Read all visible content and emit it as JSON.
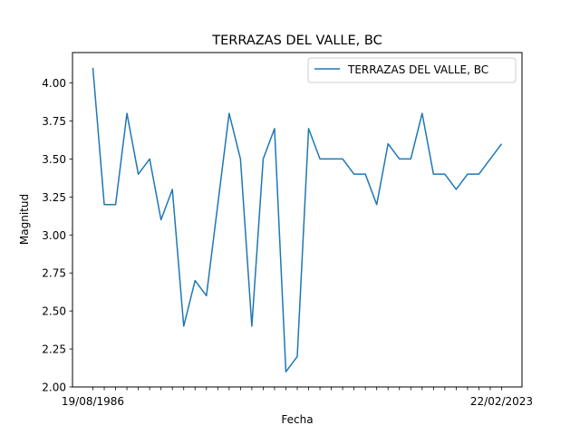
{
  "chart_data": {
    "type": "line",
    "title": "TERRAZAS DEL VALLE, BC",
    "xlabel": "Fecha",
    "ylabel": "Magnitud",
    "ylim": [
      2.0,
      4.2
    ],
    "yticks": [
      "2.00",
      "2.25",
      "2.50",
      "2.75",
      "3.00",
      "3.25",
      "3.50",
      "3.75",
      "4.00"
    ],
    "x_first_label": "19/08/1986",
    "x_last_label": "22/02/2023",
    "legend": {
      "placement": "top-right"
    },
    "grid": false,
    "color": "#1f77b4",
    "series": [
      {
        "name": "TERRAZAS DEL VALLE, BC",
        "values": [
          4.1,
          3.2,
          3.2,
          3.8,
          3.4,
          3.5,
          3.1,
          3.3,
          2.4,
          2.7,
          2.6,
          3.2,
          3.8,
          3.5,
          2.4,
          3.5,
          3.7,
          2.1,
          2.2,
          3.7,
          3.5,
          3.5,
          3.5,
          3.4,
          3.4,
          3.2,
          3.6,
          3.5,
          3.5,
          3.8,
          3.4,
          3.4,
          3.3,
          3.4,
          3.4,
          3.5,
          3.6
        ]
      }
    ]
  }
}
